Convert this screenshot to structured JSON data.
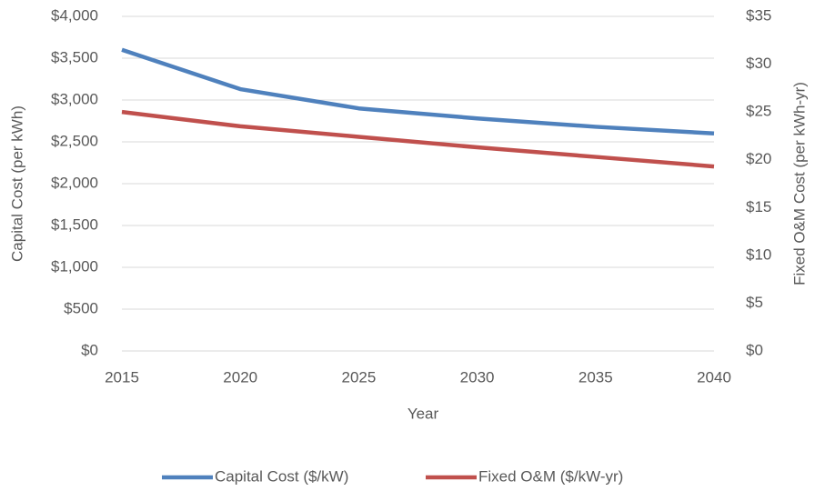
{
  "chart_data": {
    "type": "line",
    "x": [
      2015,
      2020,
      2025,
      2030,
      2035,
      2040
    ],
    "xlim": [
      2015,
      2040
    ],
    "xticks": [
      2015,
      2020,
      2025,
      2030,
      2035,
      2040
    ],
    "xlabel": "Year",
    "ylabel": "Capital Cost (per kWh)",
    "y2label": "Fixed O&M Cost (per kWh-yr)",
    "ylim": [
      0,
      4000
    ],
    "yticks": [
      {
        "value": 0,
        "label": "$0"
      },
      {
        "value": 500,
        "label": "$500"
      },
      {
        "value": 1000,
        "label": "$1,000"
      },
      {
        "value": 1500,
        "label": "$1,500"
      },
      {
        "value": 2000,
        "label": "$2,000"
      },
      {
        "value": 2500,
        "label": "$2,500"
      },
      {
        "value": 3000,
        "label": "$3,000"
      },
      {
        "value": 3500,
        "label": "$3,500"
      },
      {
        "value": 4000,
        "label": "$4,000"
      }
    ],
    "y2lim": [
      0,
      35
    ],
    "y2ticks": [
      {
        "value": 0,
        "label": "$0"
      },
      {
        "value": 5,
        "label": "$5"
      },
      {
        "value": 10,
        "label": "$10"
      },
      {
        "value": 15,
        "label": "$15"
      },
      {
        "value": 20,
        "label": "$20"
      },
      {
        "value": 25,
        "label": "$25"
      },
      {
        "value": 30,
        "label": "$30"
      },
      {
        "value": 35,
        "label": "$35"
      }
    ],
    "grid": true,
    "legend": "bottom",
    "series": [
      {
        "name": "Capital Cost ($/kW)",
        "color": "#4f81bd",
        "values": [
          3600,
          3130,
          2900,
          2780,
          2680,
          2600
        ]
      },
      {
        "name": "Fixed O&M ($/kW-yr)",
        "color": "#c0504d",
        "axis": "y2",
        "values": [
          25,
          23.5,
          22.4,
          21.3,
          20.3,
          19.3
        ]
      }
    ]
  }
}
